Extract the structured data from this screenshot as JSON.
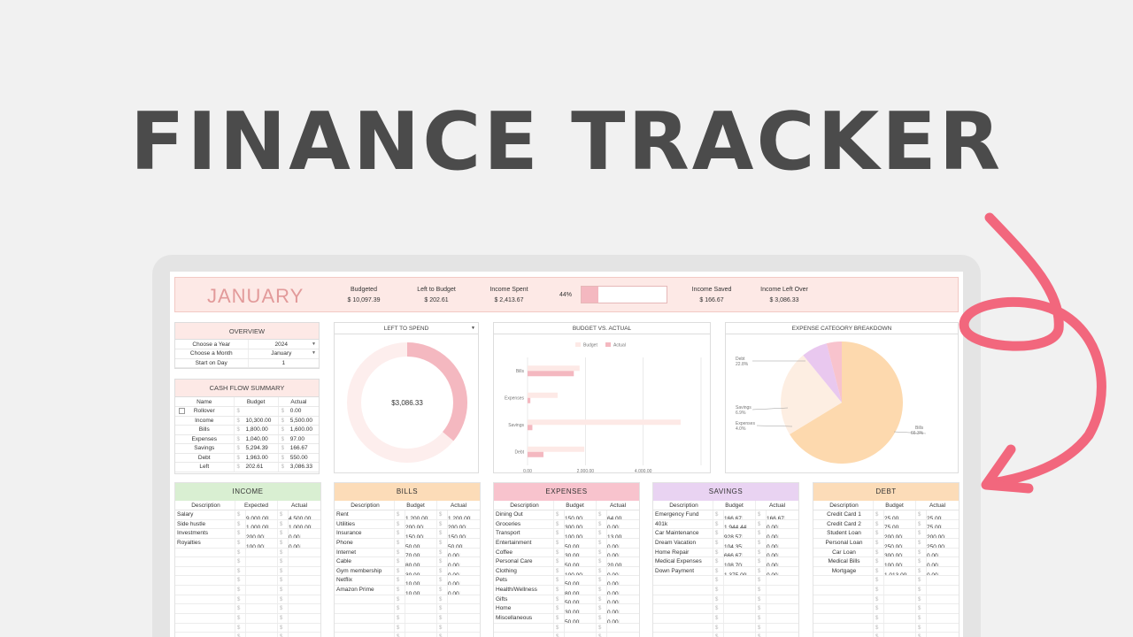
{
  "hero": {
    "title": "FINANCE TRACKER"
  },
  "month": {
    "name": "JANUARY",
    "budgeted_label": "Budgeted",
    "budgeted_value": "$ 10,097.39",
    "left_label": "Left to Budget",
    "left_value": "$ 202.61",
    "spent_label": "Income Spent",
    "spent_value": "$ 2,413.67",
    "progress_label": "44%",
    "progress": 0.44,
    "saved_label": "Income Saved",
    "saved_value": "$ 166.67",
    "leftover_label": "Income Left Over",
    "leftover_value": "$ 3,086.33"
  },
  "overview": {
    "title": "OVERVIEW",
    "rows": [
      {
        "label": "Choose a Year",
        "value": "2024",
        "dropdown": true
      },
      {
        "label": "Choose a Month",
        "value": "January",
        "dropdown": true
      },
      {
        "label": "Start on Day",
        "value": "1",
        "dropdown": false
      }
    ]
  },
  "cashflow": {
    "title": "CASH FLOW SUMMARY",
    "headers": [
      "Name",
      "Budget",
      "Actual"
    ],
    "rows": [
      {
        "name": "Rollover",
        "cur1": "$",
        "budget": "",
        "cur2": "$",
        "actual": "0.00",
        "checkbox": true
      },
      {
        "name": "Income",
        "cur1": "$",
        "budget": "10,300.00",
        "cur2": "$",
        "actual": "5,500.00"
      },
      {
        "name": "Bills",
        "cur1": "$",
        "budget": "1,800.00",
        "cur2": "$",
        "actual": "1,600.00"
      },
      {
        "name": "Expenses",
        "cur1": "$",
        "budget": "1,040.00",
        "cur2": "$",
        "actual": "97.00"
      },
      {
        "name": "Savings",
        "cur1": "$",
        "budget": "5,294.39",
        "cur2": "$",
        "actual": "166.67"
      },
      {
        "name": "Debt",
        "cur1": "$",
        "budget": "1,963.00",
        "cur2": "$",
        "actual": "550.00"
      },
      {
        "name": "Left",
        "cur1": "$",
        "budget": "202.61",
        "cur2": "$",
        "actual": "3,086.33"
      }
    ]
  },
  "left_to_spend": {
    "title": "LEFT TO SPEND",
    "center": "$3,086.33",
    "fraction": 0.36,
    "color_fill": "#f4b8c0",
    "color_track": "#fdeeed"
  },
  "bva": {
    "title": "BUDGET VS. ACTUAL",
    "legend_budget": "Budget",
    "legend_actual": "Actual",
    "color_budget": "#fde9e6",
    "color_actual": "#f4b8c0",
    "ticks": [
      "0.00",
      "2,000.00",
      "4,000.00"
    ],
    "x_max": 6000
  },
  "breakdown": {
    "title": "EXPENSE CATEGORY BREAKDOWN",
    "labels": [
      {
        "name": "Debt",
        "pct": "22.8%"
      },
      {
        "name": "Savings",
        "pct": "6.9%"
      },
      {
        "name": "Expenses",
        "pct": "4.0%"
      },
      {
        "name": "Bills",
        "pct": "66.3%"
      }
    ]
  },
  "chart_data": [
    {
      "type": "bar",
      "title": "BUDGET VS. ACTUAL",
      "categories": [
        "Bills",
        "Expenses",
        "Savings",
        "Debt"
      ],
      "series": [
        {
          "name": "Budget",
          "values": [
            1800,
            1040,
            5294.39,
            1963
          ]
        },
        {
          "name": "Actual",
          "values": [
            1600,
            97,
            166.67,
            550
          ]
        }
      ],
      "xlim": [
        0,
        6000
      ],
      "orientation": "horizontal",
      "legend": "top"
    },
    {
      "type": "pie",
      "title": "EXPENSE CATEGORY BREAKDOWN",
      "categories": [
        "Bills",
        "Debt",
        "Savings",
        "Expenses"
      ],
      "values": [
        66.3,
        22.8,
        6.9,
        4.0
      ],
      "colors": [
        "#fdd9ae",
        "#fdeee2",
        "#e9c8ef",
        "#f8c3cd"
      ]
    }
  ],
  "categories": [
    {
      "key": "income",
      "title": "INCOME",
      "color": "#d9efd2",
      "headers": [
        "Description",
        "Expected",
        "Actual"
      ],
      "rows": [
        {
          "d": "Salary",
          "a": "9,000.00",
          "b": "4,500.00"
        },
        {
          "d": "Side hustle",
          "a": "1,000.00",
          "b": "1,000.00"
        },
        {
          "d": "Investments",
          "a": "200.00",
          "b": "0.00"
        },
        {
          "d": "Royalties",
          "a": "100.00",
          "b": "0.00"
        }
      ]
    },
    {
      "key": "bills",
      "title": "BILLS",
      "color": "#fcdcb8",
      "headers": [
        "Description",
        "Budget",
        "Actual"
      ],
      "rows": [
        {
          "d": "Rent",
          "a": "1,200.00",
          "b": "1,200.00"
        },
        {
          "d": "Utilities",
          "a": "200.00",
          "b": "200.00"
        },
        {
          "d": "Insurance",
          "a": "150.00",
          "b": "150.00"
        },
        {
          "d": "Phone",
          "a": "50.00",
          "b": "50.00"
        },
        {
          "d": "Internet",
          "a": "70.00",
          "b": "0.00"
        },
        {
          "d": "Cable",
          "a": "80.00",
          "b": "0.00"
        },
        {
          "d": "Gym membership",
          "a": "30.00",
          "b": "0.00"
        },
        {
          "d": "Netflix",
          "a": "10.00",
          "b": "0.00"
        },
        {
          "d": "Amazon Prime",
          "a": "10.00",
          "b": "0.00"
        }
      ]
    },
    {
      "key": "expenses",
      "title": "EXPENSES",
      "color": "#f8c3cd",
      "headers": [
        "Description",
        "Budget",
        "Actual"
      ],
      "rows": [
        {
          "d": "Dining Out",
          "a": "150.00",
          "b": "64.00"
        },
        {
          "d": "Groceries",
          "a": "300.00",
          "b": "0.00"
        },
        {
          "d": "Transport",
          "a": "100.00",
          "b": "13.00"
        },
        {
          "d": "Entertainment",
          "a": "50.00",
          "b": "0.00"
        },
        {
          "d": "Coffee",
          "a": "30.00",
          "b": "0.00"
        },
        {
          "d": "Personal Care",
          "a": "50.00",
          "b": "20.00"
        },
        {
          "d": "Clothing",
          "a": "100.00",
          "b": "0.00"
        },
        {
          "d": "Pets",
          "a": "50.00",
          "b": "0.00"
        },
        {
          "d": "Health/Wellness",
          "a": "80.00",
          "b": "0.00"
        },
        {
          "d": "Gifts",
          "a": "50.00",
          "b": "0.00"
        },
        {
          "d": "Home",
          "a": "30.00",
          "b": "0.00"
        },
        {
          "d": "Miscellaneous",
          "a": "50.00",
          "b": "0.00"
        }
      ]
    },
    {
      "key": "savings",
      "title": "SAVINGS",
      "color": "#e9d3f2",
      "headers": [
        "Description",
        "Budget",
        "Actual"
      ],
      "rows": [
        {
          "d": "Emergency Fund",
          "a": "166.67",
          "b": "166.67"
        },
        {
          "d": "401k",
          "a": "1,944.44",
          "b": "0.00"
        },
        {
          "d": "Car Maintenance",
          "a": "928.57",
          "b": "0.00"
        },
        {
          "d": "Dream Vacation",
          "a": "104.35",
          "b": "0.00"
        },
        {
          "d": "Home Repair",
          "a": "666.67",
          "b": "0.00"
        },
        {
          "d": "Medical Expenses",
          "a": "108.70",
          "b": "0.00"
        },
        {
          "d": "Down Payment",
          "a": "1,375.00",
          "b": "0.00"
        }
      ]
    },
    {
      "key": "debt",
      "title": "DEBT",
      "color": "#fcdcb8",
      "headers": [
        "Description",
        "Budget",
        "Actual"
      ],
      "rows": [
        {
          "d": "Credit Card 1",
          "a": "25.00",
          "b": "25.00"
        },
        {
          "d": "Credit Card 2",
          "a": "75.00",
          "b": "75.00"
        },
        {
          "d": "Student Loan",
          "a": "200.00",
          "b": "200.00"
        },
        {
          "d": "Personal Loan",
          "a": "250.00",
          "b": "250.00"
        },
        {
          "d": "Car Loan",
          "a": "300.00",
          "b": "0.00"
        },
        {
          "d": "Medical Bills",
          "a": "100.00",
          "b": "0.00"
        },
        {
          "d": "Mortgage",
          "a": "1,013.00",
          "b": "0.00"
        }
      ]
    }
  ],
  "currency": "$",
  "arrow_color": "#f2677d"
}
